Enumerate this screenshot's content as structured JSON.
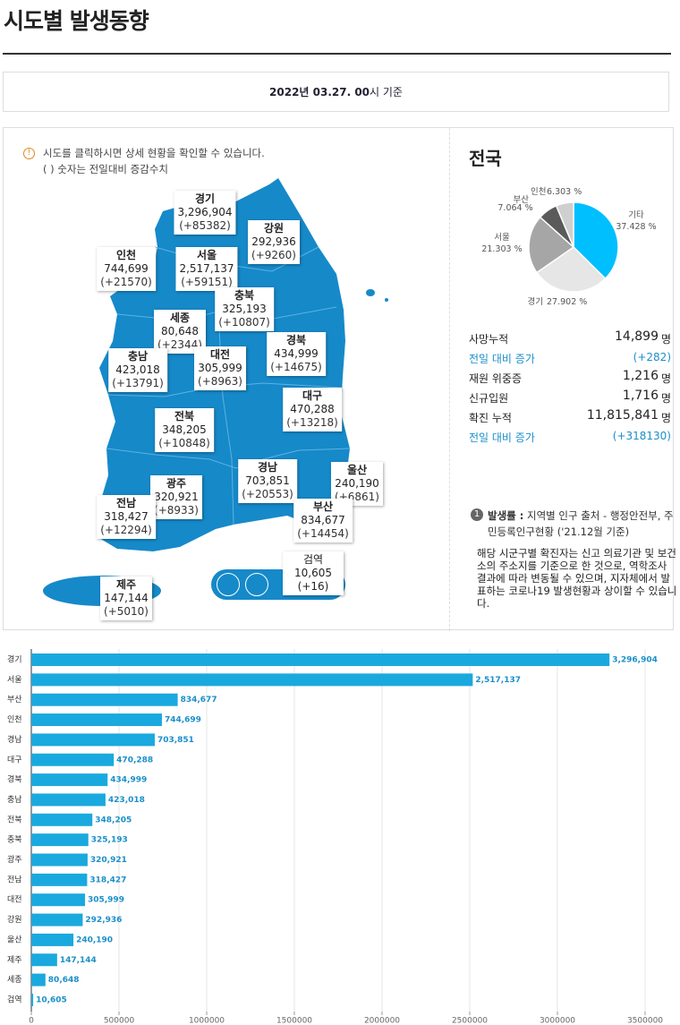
{
  "header": {
    "title": "시도별 발생동향",
    "date": "2022년 03.27. 00",
    "date_suffix": "시 기준"
  },
  "notice": [
    "시도를 클릭하시면 상세 현황을 확인할 수 있습니다.",
    "( ) 숫자는 전일대비 증감수치"
  ],
  "map": {
    "regions": [
      {
        "name": "경기",
        "count": "3,296,904",
        "change": "(+85382)"
      },
      {
        "name": "강원",
        "count": "292,936",
        "change": "(+9260)"
      },
      {
        "name": "인천",
        "count": "744,699",
        "change": "(+21570)"
      },
      {
        "name": "서울",
        "count": "2,517,137",
        "change": "(+59151)"
      },
      {
        "name": "충북",
        "count": "325,193",
        "change": "(+10807)"
      },
      {
        "name": "세종",
        "count": "80,648",
        "change": "(+2344)"
      },
      {
        "name": "충남",
        "count": "423,018",
        "change": "(+13791)"
      },
      {
        "name": "대전",
        "count": "305,999",
        "change": "(+8963)"
      },
      {
        "name": "경북",
        "count": "434,999",
        "change": "(+14675)"
      },
      {
        "name": "대구",
        "count": "470,288",
        "change": "(+13218)"
      },
      {
        "name": "전북",
        "count": "348,205",
        "change": "(+10848)"
      },
      {
        "name": "경남",
        "count": "703,851",
        "change": "(+20553)"
      },
      {
        "name": "울산",
        "count": "240,190",
        "change": "(+6861)"
      },
      {
        "name": "광주",
        "count": "320,921",
        "change": "(+8933)"
      },
      {
        "name": "전남",
        "count": "318,427",
        "change": "(+12294)"
      },
      {
        "name": "부산",
        "count": "834,677",
        "change": "(+14454)"
      },
      {
        "name": "제주",
        "count": "147,144",
        "change": "(+5010)"
      }
    ],
    "quarantine": {
      "name": "검역",
      "count": "10,605",
      "change": "(+16)"
    }
  },
  "national": {
    "title": "전국",
    "stats": [
      {
        "label": "사망누적",
        "value": "14,899",
        "unit": "명"
      },
      {
        "label": "전일 대비 증가",
        "value": "(+282)"
      },
      {
        "label": "재원 위중증",
        "value": "1,216",
        "unit": "명"
      },
      {
        "label": "신규입원",
        "value": "1,716",
        "unit": "명"
      },
      {
        "label": "확진 누적",
        "value": "11,815,841",
        "unit": "명"
      },
      {
        "label": "전일 대비 증가",
        "value": "(+318130)"
      }
    ],
    "note": {
      "number": "1",
      "term": "발생률 :",
      "source": "지역별 인구 출처 - 행정안전부, 주민등록인구현황 ('21.12월 기준)",
      "disclaimer": "해당 시군구별 확진자는 신고 의료기관 및 보건소의 주소지를 기준으로 한 것으로, 역학조사 결과에 따라 변동될 수 있으며, 지자체에서 발표하는 코로나19 발생현황과 상이할 수 있습니다."
    }
  },
  "chart_data": [
    {
      "type": "pie",
      "categories": [
        "기타",
        "경기",
        "서울",
        "부산",
        "인천"
      ],
      "values": [
        37.428,
        27.902,
        21.303,
        7.064,
        6.303
      ],
      "value_labels": [
        "37.428 %",
        "27.902 %",
        "21.303 %",
        "7.064 %",
        "6.303 %"
      ],
      "colors": [
        "#00bfff",
        "#e6e6e6",
        "#a6a6a6",
        "#5a5a5a",
        "#cfcfcf"
      ]
    },
    {
      "type": "bar",
      "orientation": "horizontal",
      "categories": [
        "경기",
        "서울",
        "부산",
        "인천",
        "경남",
        "대구",
        "경북",
        "충남",
        "전북",
        "충북",
        "광주",
        "전남",
        "대전",
        "강원",
        "울산",
        "제주",
        "세종",
        "검역"
      ],
      "values": [
        3296904,
        2517137,
        834677,
        744699,
        703851,
        470288,
        434999,
        423018,
        348205,
        325193,
        320921,
        318427,
        305999,
        292936,
        240190,
        147144,
        80648,
        10605
      ],
      "value_labels": [
        "3,296,904",
        "2,517,137",
        "834,677",
        "744,699",
        "703,851",
        "470,288",
        "434,999",
        "423,018",
        "348,205",
        "325,193",
        "320,921",
        "318,427",
        "305,999",
        "292,936",
        "240,190",
        "147,144",
        "80,648",
        "10,605"
      ],
      "color": "#1aa9de",
      "xlim": [
        0,
        3500000
      ],
      "xticks": [
        0,
        500000,
        1000000,
        1500000,
        2000000,
        2500000,
        3000000,
        3500000
      ],
      "grid": true
    }
  ]
}
